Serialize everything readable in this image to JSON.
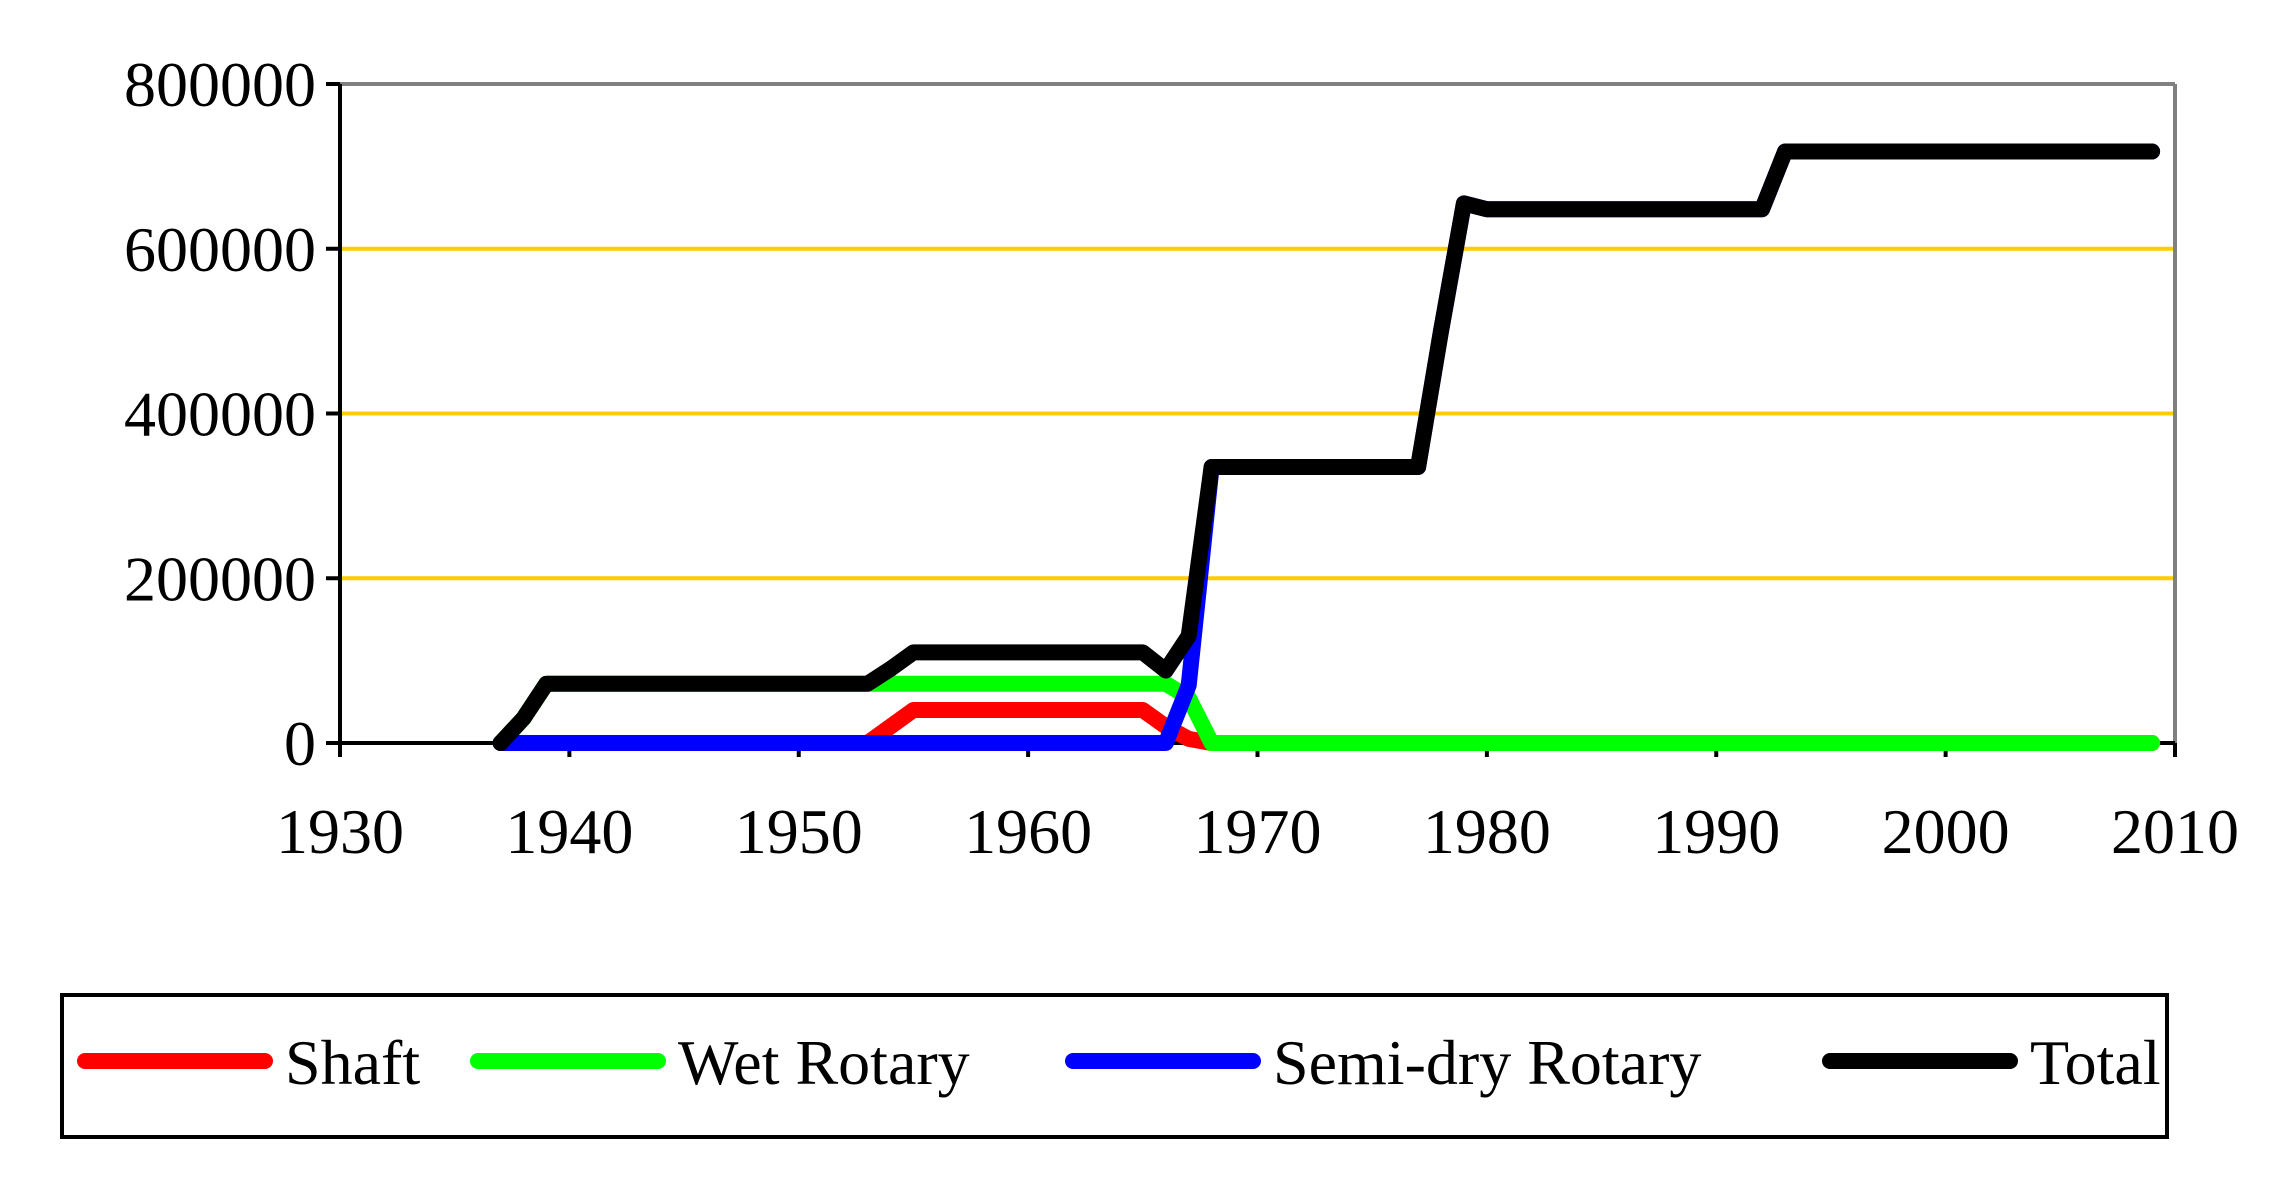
{
  "chart_data": {
    "type": "line",
    "title": "",
    "xlabel": "",
    "ylabel": "",
    "xlim": [
      1930,
      2010
    ],
    "ylim": [
      0,
      800000
    ],
    "x_ticks": [
      1930,
      1940,
      1950,
      1960,
      1970,
      1980,
      1990,
      2000,
      2010
    ],
    "y_ticks": [
      0,
      200000,
      400000,
      600000,
      800000
    ],
    "x_tick_labels": [
      "1930",
      "1940",
      "1950",
      "1960",
      "1970",
      "1980",
      "1990",
      "2000",
      "2010"
    ],
    "y_tick_labels": [
      "0",
      "200000",
      "400000",
      "600000",
      "800000"
    ],
    "grid": "horizontal",
    "legend_position": "bottom",
    "series": [
      {
        "name": "Shaft",
        "color": "#ff0000",
        "points": [
          [
            1937,
            0
          ],
          [
            1953,
            0
          ],
          [
            1955,
            40000
          ],
          [
            1965,
            40000
          ],
          [
            1966,
            20000
          ],
          [
            1967,
            5000
          ],
          [
            1968,
            0
          ],
          [
            2009,
            0
          ]
        ]
      },
      {
        "name": "Wet Rotary",
        "color": "#00ff00",
        "points": [
          [
            1937,
            0
          ],
          [
            1938,
            30000
          ],
          [
            1939,
            72000
          ],
          [
            1953,
            72000
          ],
          [
            1955,
            72000
          ],
          [
            1966,
            72000
          ],
          [
            1967,
            55000
          ],
          [
            1968,
            0
          ],
          [
            2009,
            0
          ]
        ]
      },
      {
        "name": "Semi-dry Rotary",
        "color": "#0000ff",
        "points": [
          [
            1937,
            0
          ],
          [
            1966,
            0
          ],
          [
            1967,
            70000
          ],
          [
            1968,
            335000
          ],
          [
            1977,
            335000
          ],
          [
            1978,
            500000
          ],
          [
            1979,
            655000
          ],
          [
            1980,
            648000
          ],
          [
            1992,
            648000
          ],
          [
            1993,
            718000
          ],
          [
            2009,
            718000
          ]
        ]
      },
      {
        "name": "Total",
        "color": "#000000",
        "points": [
          [
            1937,
            0
          ],
          [
            1938,
            30000
          ],
          [
            1939,
            72000
          ],
          [
            1953,
            72000
          ],
          [
            1954,
            90000
          ],
          [
            1955,
            110000
          ],
          [
            1965,
            110000
          ],
          [
            1966,
            88000
          ],
          [
            1967,
            130000
          ],
          [
            1968,
            335000
          ],
          [
            1977,
            335000
          ],
          [
            1978,
            500000
          ],
          [
            1979,
            655000
          ],
          [
            1980,
            648000
          ],
          [
            1992,
            648000
          ],
          [
            1993,
            718000
          ],
          [
            2009,
            718000
          ]
        ]
      }
    ]
  }
}
